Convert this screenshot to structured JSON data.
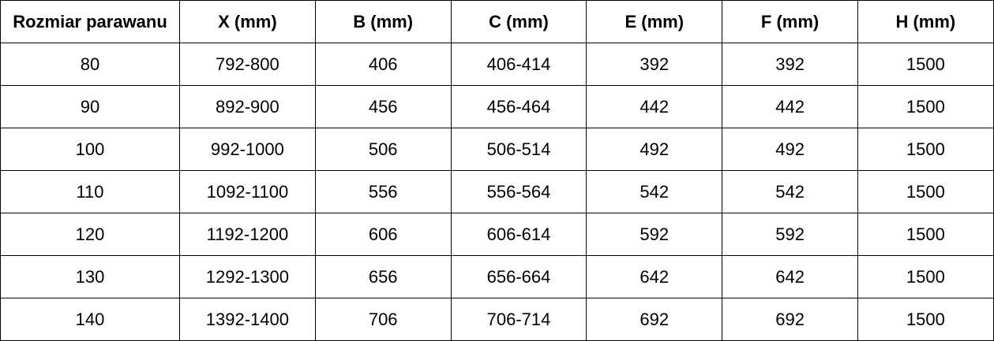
{
  "table": {
    "headers": [
      "Rozmiar parawanu",
      "X (mm)",
      "B (mm)",
      "C (mm)",
      "E (mm)",
      "F (mm)",
      "H (mm)"
    ],
    "rows": [
      [
        "80",
        "792-800",
        "406",
        "406-414",
        "392",
        "392",
        "1500"
      ],
      [
        "90",
        "892-900",
        "456",
        "456-464",
        "442",
        "442",
        "1500"
      ],
      [
        "100",
        "992-1000",
        "506",
        "506-514",
        "492",
        "492",
        "1500"
      ],
      [
        "110",
        "1092-1100",
        "556",
        "556-564",
        "542",
        "542",
        "1500"
      ],
      [
        "120",
        "1192-1200",
        "606",
        "606-614",
        "592",
        "592",
        "1500"
      ],
      [
        "130",
        "1292-1300",
        "656",
        "656-664",
        "642",
        "642",
        "1500"
      ],
      [
        "140",
        "1392-1400",
        "706",
        "706-714",
        "692",
        "692",
        "1500"
      ]
    ]
  }
}
